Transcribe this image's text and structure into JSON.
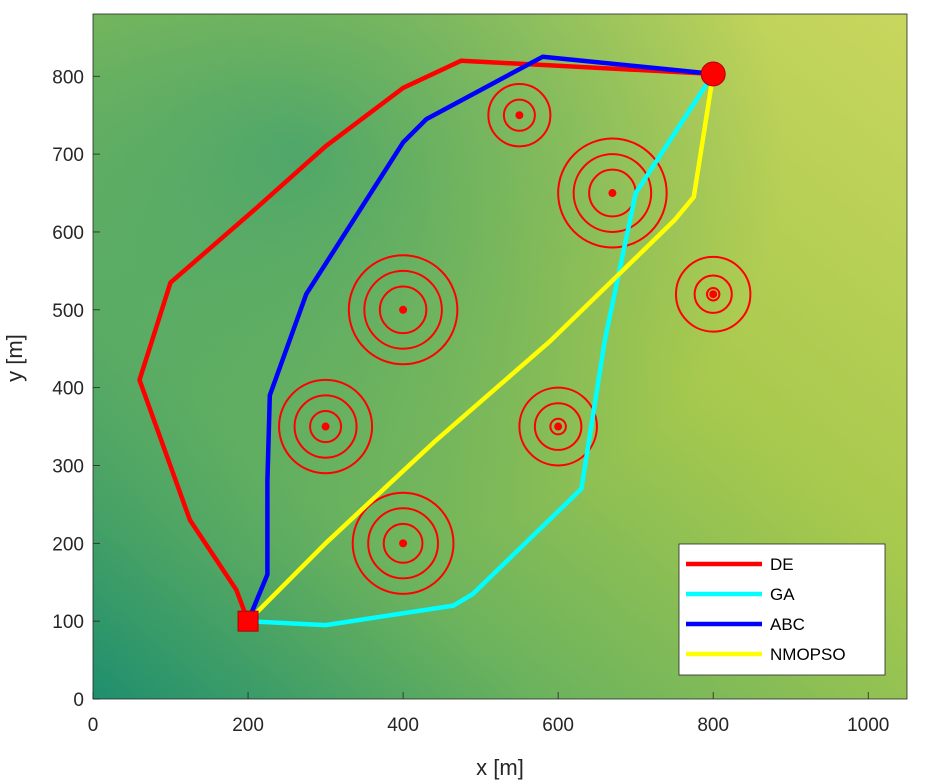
{
  "chart_data": {
    "type": "line",
    "title": "",
    "xlabel": "x [m]",
    "ylabel": "y [m]",
    "xlim": [
      0,
      1050
    ],
    "ylim": [
      0,
      880
    ],
    "xticks": [
      0,
      200,
      400,
      600,
      800,
      1000
    ],
    "yticks": [
      0,
      100,
      200,
      300,
      400,
      500,
      600,
      700,
      800
    ],
    "background": "terrain elevation map",
    "start": {
      "x": 200,
      "y": 100,
      "marker": "square",
      "color": "#ff0000"
    },
    "goal": {
      "x": 800,
      "y": 803,
      "marker": "circle",
      "color": "#ff0000"
    },
    "threats": [
      {
        "x": 400,
        "y": 500,
        "radii": [
          70,
          50,
          30
        ]
      },
      {
        "x": 300,
        "y": 350,
        "radii": [
          60,
          40,
          20
        ]
      },
      {
        "x": 400,
        "y": 200,
        "radii": [
          65,
          45,
          25
        ]
      },
      {
        "x": 600,
        "y": 350,
        "radii": [
          50,
          30,
          10
        ]
      },
      {
        "x": 550,
        "y": 750,
        "radii": [
          40,
          20
        ]
      },
      {
        "x": 670,
        "y": 650,
        "radii": [
          70,
          50,
          30
        ]
      },
      {
        "x": 800,
        "y": 520,
        "radii": [
          48,
          24,
          8
        ]
      }
    ],
    "series": [
      {
        "name": "DE",
        "color": "#ff0000",
        "x": [
          200,
          185,
          125,
          60,
          100,
          210,
          300,
          400,
          475,
          800
        ],
        "y": [
          100,
          140,
          230,
          410,
          535,
          630,
          710,
          785,
          820,
          803
        ]
      },
      {
        "name": "GA",
        "color": "#00ffff",
        "x": [
          200,
          300,
          465,
          490,
          630,
          660,
          700,
          800
        ],
        "y": [
          100,
          95,
          120,
          135,
          270,
          460,
          650,
          803
        ]
      },
      {
        "name": "ABC",
        "color": "#0000ff",
        "x": [
          200,
          225,
          225,
          228,
          275,
          400,
          430,
          580,
          800
        ],
        "y": [
          100,
          160,
          280,
          390,
          520,
          715,
          745,
          825,
          803
        ]
      },
      {
        "name": "NMOPSO",
        "color": "#ffff00",
        "x": [
          200,
          300,
          440,
          590,
          750,
          775,
          800
        ],
        "y": [
          100,
          200,
          330,
          460,
          615,
          645,
          803
        ]
      }
    ]
  }
}
